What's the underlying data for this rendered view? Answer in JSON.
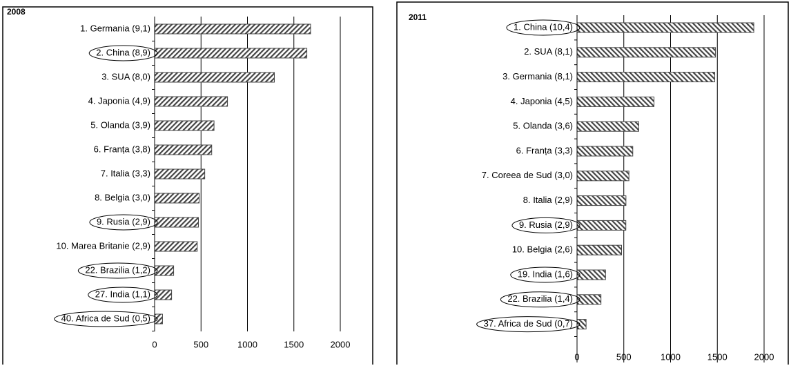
{
  "chart_data": [
    {
      "type": "bar",
      "orientation": "horizontal",
      "title": "2008",
      "categories": [
        "1. Germania (9,1)",
        "2. China (8,9)",
        "3. SUA (8,0)",
        "4. Japonia (4,9)",
        "5. Olanda (3,9)",
        "6. Franța (3,8)",
        "7. Italia (3,3)",
        "8. Belgia (3,0)",
        "9. Rusia (2,9)",
        "10. Marea Britanie (2,9)",
        "22. Brazilia (1,2)",
        "27. India (1,1)",
        "40. Africa de Sud (0,5)"
      ],
      "values": [
        1680,
        1640,
        1290,
        785,
        640,
        615,
        540,
        480,
        472,
        459,
        205,
        183,
        85
      ],
      "xlim": [
        0,
        2000
      ],
      "xticks": [
        0,
        500,
        1000,
        1500,
        2000
      ],
      "grid": true,
      "color": "#444"
    },
    {
      "type": "bar",
      "orientation": "horizontal",
      "title": "2011",
      "categories": [
        "1. China (10,4)",
        "2. SUA (8,1)",
        "3. Germania (8,1)",
        "4. Japonia (4,5)",
        "5. Olanda (3,6)",
        "6. Franța (3,3)",
        "7. Coreea de Sud (3,0)",
        "8. Italia (2,9)",
        "9. Rusia (2,9)",
        "10. Belgia (2,6)",
        "19. India (1,6)",
        "22. Brazilia (1,4)",
        "37. Africa de Sud (0,7)"
      ],
      "values": [
        1890,
        1480,
        1472,
        823,
        660,
        596,
        555,
        523,
        522,
        476,
        305,
        256,
        97
      ],
      "xlim": [
        0,
        2000
      ],
      "xticks": [
        0,
        500,
        1000,
        1500,
        2000
      ],
      "grid": true,
      "color": "#444"
    }
  ]
}
